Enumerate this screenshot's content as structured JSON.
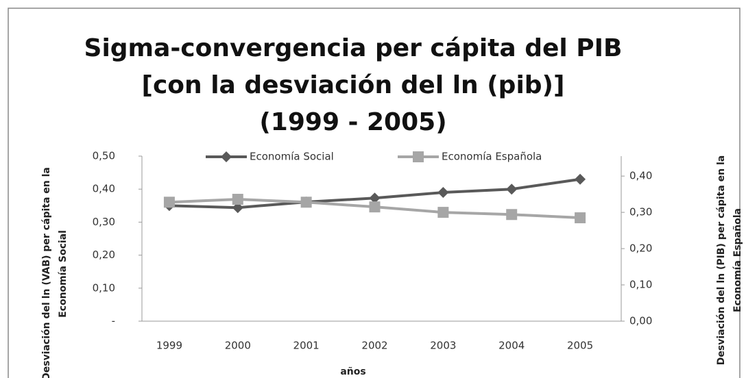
{
  "chart_data": {
    "type": "line",
    "title": [
      "Sigma-convergencia per cápita del PIB",
      "[con la desviación del ln (pib)]",
      "(1999 - 2005)"
    ],
    "x_label": "años",
    "y_label": [
      "Desviación del ln (VAB) per cápita en la",
      "Economía Social"
    ],
    "y2_label": [
      "Desviación del ln (PIB) per cápita en la",
      "Economía Española"
    ],
    "categories": [
      "1999",
      "2000",
      "2001",
      "2002",
      "2003",
      "2004",
      "2005"
    ],
    "series": [
      {
        "name": "Economía Social",
        "color": "#595959",
        "marker": "diamond",
        "values": [
          0.35,
          0.344,
          0.361,
          0.373,
          0.39,
          0.4,
          0.43
        ]
      },
      {
        "name": "Economía Española",
        "color": "#a6a6a6",
        "marker": "square",
        "axis": "y2",
        "values": [
          0.328,
          0.336,
          0.328,
          0.315,
          0.3,
          0.294,
          0.285
        ]
      }
    ],
    "ylim": [
      0,
      0.5
    ],
    "yticks": [
      {
        "value": 0,
        "label": "-"
      },
      {
        "value": 0.1,
        "label": "0,10"
      },
      {
        "value": 0.2,
        "label": "0,20"
      },
      {
        "value": 0.3,
        "label": "0,30"
      },
      {
        "value": 0.4,
        "label": "0,40"
      },
      {
        "value": 0.5,
        "label": "0,50"
      }
    ],
    "y2lim": [
      0,
      0.455
    ],
    "y2ticks": [
      {
        "value": 0,
        "label": "0,00"
      },
      {
        "value": 0.1,
        "label": "0,10"
      },
      {
        "value": 0.2,
        "label": "0,20"
      },
      {
        "value": 0.3,
        "label": "0,30"
      },
      {
        "value": 0.4,
        "label": "0,40"
      }
    ],
    "grid": false,
    "legend": "top"
  }
}
